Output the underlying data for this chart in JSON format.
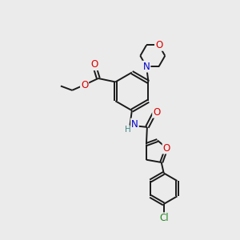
{
  "bg_color": "#ebebeb",
  "bond_color": "#1a1a1a",
  "atom_colors": {
    "O": "#dd0000",
    "N": "#0000cc",
    "Cl": "#228822",
    "H": "#448888"
  },
  "bond_width": 1.4,
  "font_size": 8.5
}
